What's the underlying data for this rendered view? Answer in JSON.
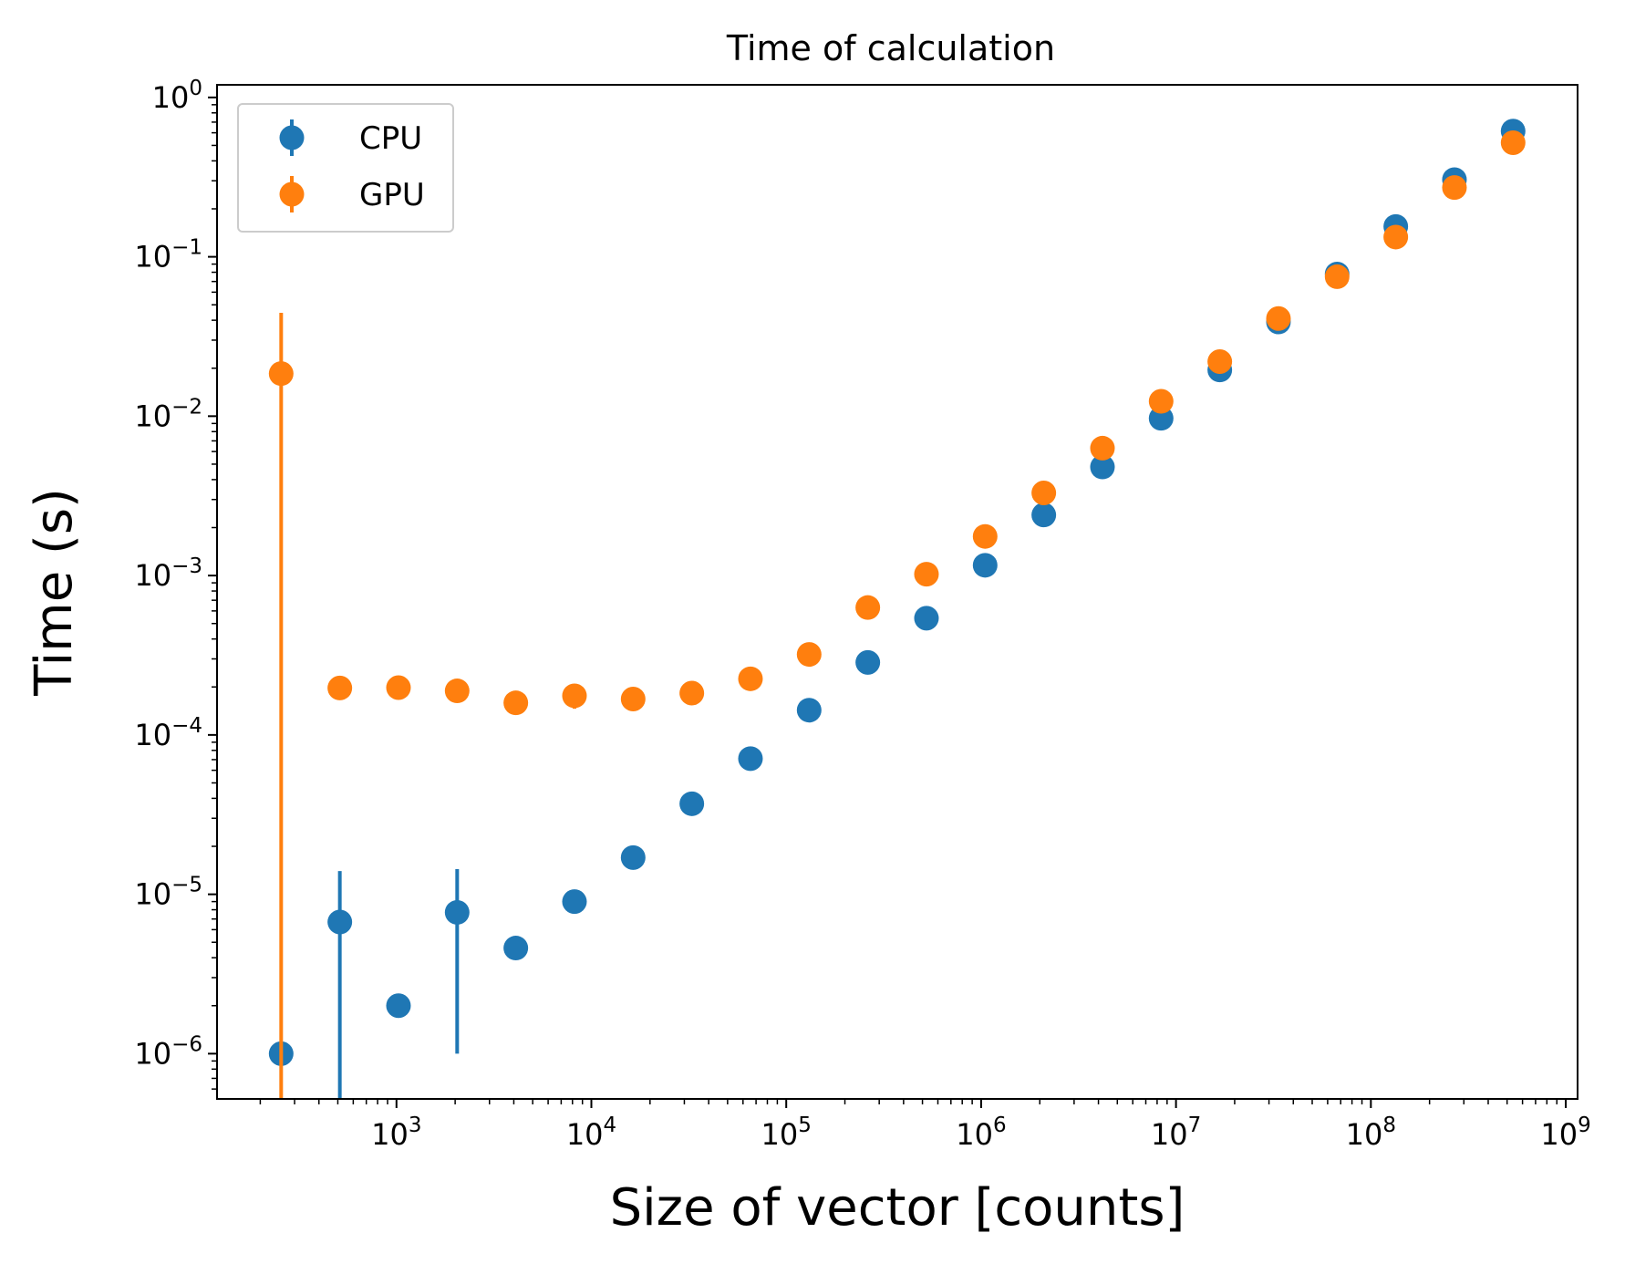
{
  "chart_data": {
    "type": "scatter",
    "title": "Time of calculation",
    "xlabel": "Size of vector [counts]",
    "ylabel": "Time (s)",
    "xscale": "log",
    "yscale": "log",
    "xlim": [
      120,
      1150000000
    ],
    "ylim": [
      5.2e-07,
      1.2
    ],
    "x_tick_labels": [
      {
        "base": "10",
        "exp": "3",
        "value": 1000
      },
      {
        "base": "10",
        "exp": "4",
        "value": 10000
      },
      {
        "base": "10",
        "exp": "5",
        "value": 100000
      },
      {
        "base": "10",
        "exp": "6",
        "value": 1000000
      },
      {
        "base": "10",
        "exp": "7",
        "value": 10000000
      },
      {
        "base": "10",
        "exp": "8",
        "value": 100000000
      },
      {
        "base": "10",
        "exp": "9",
        "value": 1000000000
      }
    ],
    "y_tick_labels": [
      {
        "base": "10",
        "exp": "−6",
        "value": 1e-06
      },
      {
        "base": "10",
        "exp": "−5",
        "value": 1e-05
      },
      {
        "base": "10",
        "exp": "−4",
        "value": 0.0001
      },
      {
        "base": "10",
        "exp": "−3",
        "value": 0.001
      },
      {
        "base": "10",
        "exp": "−2",
        "value": 0.01
      },
      {
        "base": "10",
        "exp": "−1",
        "value": 0.1
      },
      {
        "base": "10",
        "exp": "0",
        "value": 1
      }
    ],
    "grid": false,
    "legend_position": "top-left",
    "x": [
      256,
      512,
      1024,
      2048,
      4096,
      8192,
      16384,
      32768,
      65536,
      131072,
      262144,
      524288,
      1048576,
      2097152,
      4194304,
      8388608,
      16777216,
      33554432,
      67108864,
      134217728,
      268435456,
      536870912
    ],
    "series": [
      {
        "name": "CPU",
        "color": "#1f77b4",
        "values": [
          1e-06,
          6.7e-06,
          2e-06,
          7.7e-06,
          4.6e-06,
          9e-06,
          1.7e-05,
          3.7e-05,
          7.1e-05,
          0.000143,
          0.000285,
          0.00054,
          0.00116,
          0.0024,
          0.0048,
          0.0097,
          0.0195,
          0.039,
          0.078,
          0.155,
          0.305,
          0.615
        ],
        "errors": [
          0,
          7.3e-06,
          0,
          6.7e-06,
          0,
          0,
          0,
          0,
          0,
          0,
          0,
          0,
          0,
          0,
          0,
          0,
          0,
          0,
          0,
          0,
          0,
          0
        ]
      },
      {
        "name": "GPU",
        "color": "#ff7f0e",
        "values": [
          0.0185,
          0.000197,
          0.000198,
          0.000189,
          0.000159,
          0.000176,
          0.000168,
          0.000183,
          0.000225,
          0.00032,
          0.00063,
          0.00102,
          0.00176,
          0.0033,
          0.0063,
          0.0124,
          0.022,
          0.041,
          0.075,
          0.133,
          0.272,
          0.52
        ],
        "errors": [
          0.026,
          0,
          0,
          0,
          0,
          3e-05,
          0,
          0,
          0,
          0,
          0,
          0,
          0,
          0,
          0,
          0,
          0,
          0,
          0,
          0,
          0,
          0
        ]
      }
    ]
  }
}
